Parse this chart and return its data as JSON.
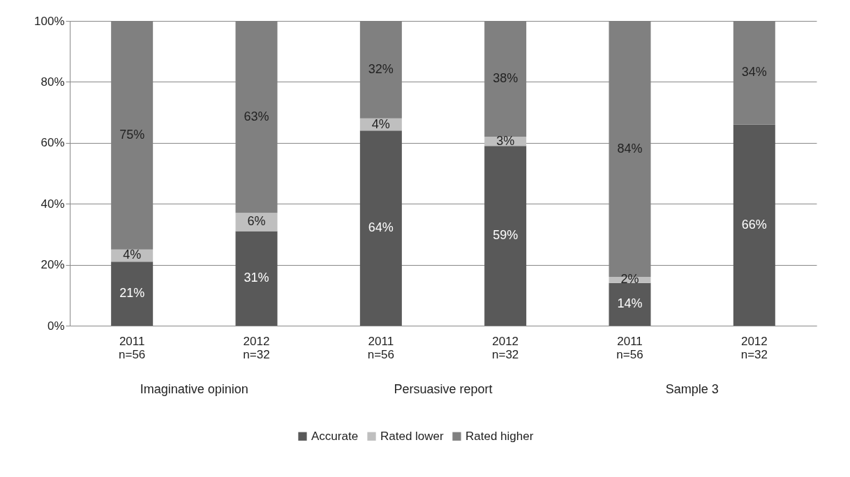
{
  "chart_data": {
    "type": "bar",
    "stacked": true,
    "categories": [
      "2011\nn=56",
      "2012\nn=32",
      "2011\nn=56",
      "2012\nn=32",
      "2011\nn=56",
      "2012\nn=32"
    ],
    "annotations": [
      "Imaginative opinion",
      "Persuasive report",
      "Sample 3"
    ],
    "series": [
      {
        "name": "Accurate",
        "color": "#595959",
        "values": [
          21,
          31,
          64,
          59,
          14,
          66
        ],
        "value_labels": [
          "21%",
          "31%",
          "64%",
          "59%",
          "14%",
          "66%"
        ]
      },
      {
        "name": "Rated lower",
        "color": "#bfbfbf",
        "values": [
          4,
          6,
          4,
          3,
          2,
          0
        ],
        "value_labels": [
          "4%",
          "6%",
          "4%",
          "3%",
          "2%",
          null
        ]
      },
      {
        "name": "Rated higher",
        "color": "#808080",
        "values": [
          75,
          63,
          32,
          38,
          84,
          34
        ],
        "value_labels": [
          "75%",
          "63%",
          "32%",
          "38%",
          "84%",
          "34%"
        ]
      }
    ],
    "ylim": [
      0,
      100
    ],
    "yticks": [
      {
        "value": 0,
        "label": "0%"
      },
      {
        "value": 20,
        "label": "20%"
      },
      {
        "value": 40,
        "label": "40%"
      },
      {
        "value": 60,
        "label": "60%"
      },
      {
        "value": 80,
        "label": "80%"
      },
      {
        "value": 100,
        "label": "100%"
      }
    ],
    "grid": "y",
    "legend": "bottom"
  }
}
